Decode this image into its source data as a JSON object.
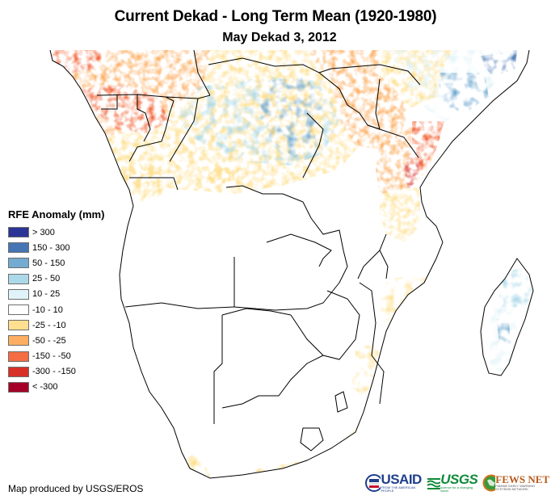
{
  "header": {
    "title": "Current Dekad - Long Term Mean (1920-1980)",
    "subtitle": "May Dekad 3, 2012"
  },
  "legend": {
    "title": "RFE Anomaly (mm)",
    "items": [
      {
        "label": "> 300",
        "color": "#2b3595"
      },
      {
        "label": "150 - 300",
        "color": "#4575b4"
      },
      {
        "label": "50 - 150",
        "color": "#74abd1"
      },
      {
        "label": "25 - 50",
        "color": "#abd9e9"
      },
      {
        "label": "10 - 25",
        "color": "#e0f3f8"
      },
      {
        "label": "-10 - 10",
        "color": "#ffffff"
      },
      {
        "label": "-25 - -10",
        "color": "#fee090"
      },
      {
        "label": "-50 - -25",
        "color": "#fdae61"
      },
      {
        "label": "-150 - -50",
        "color": "#f46d43"
      },
      {
        "label": "-300 - -150",
        "color": "#d73027"
      },
      {
        "label": "< -300",
        "color": "#a50026"
      }
    ]
  },
  "footer": {
    "credit": "Map produced by USGS/EROS",
    "logos": [
      {
        "name": "USAID",
        "tagline": "FROM THE AMERICAN PEOPLE"
      },
      {
        "name": "USGS",
        "tagline": "science for a changing world"
      },
      {
        "name": "FEWS NET",
        "tagline": "FAMINE EARLY WARNING SYSTEMS NETWORK"
      }
    ]
  },
  "map": {
    "region": "Southern and Eastern Africa",
    "anomaly_regions": [
      {
        "area": "Gulf of Guinea / Cameroon / Gabon",
        "class": "-150 - -50"
      },
      {
        "area": "Central African Republic / northern Congo",
        "class": "-50 - -25"
      },
      {
        "area": "DR Congo central basin",
        "class": "50 - 150"
      },
      {
        "area": "South Sudan / eastern DRC",
        "class": "150 - 300"
      },
      {
        "area": "Kenya / Somalia coast",
        "class": "-300 - -150"
      },
      {
        "area": "Somalia interior",
        "class": "150 - 300"
      },
      {
        "area": "Tanzania coast",
        "class": "-150 - -50"
      },
      {
        "area": "Angola north",
        "class": "-25 - -10"
      },
      {
        "area": "Mozambique coast",
        "class": "-25 - -10"
      },
      {
        "area": "South Africa south/east coast",
        "class": "-25 - -10"
      },
      {
        "area": "Madagascar east",
        "class": "25 - 50"
      },
      {
        "area": "Interior southern Africa",
        "class": "-10 - 10"
      }
    ]
  }
}
